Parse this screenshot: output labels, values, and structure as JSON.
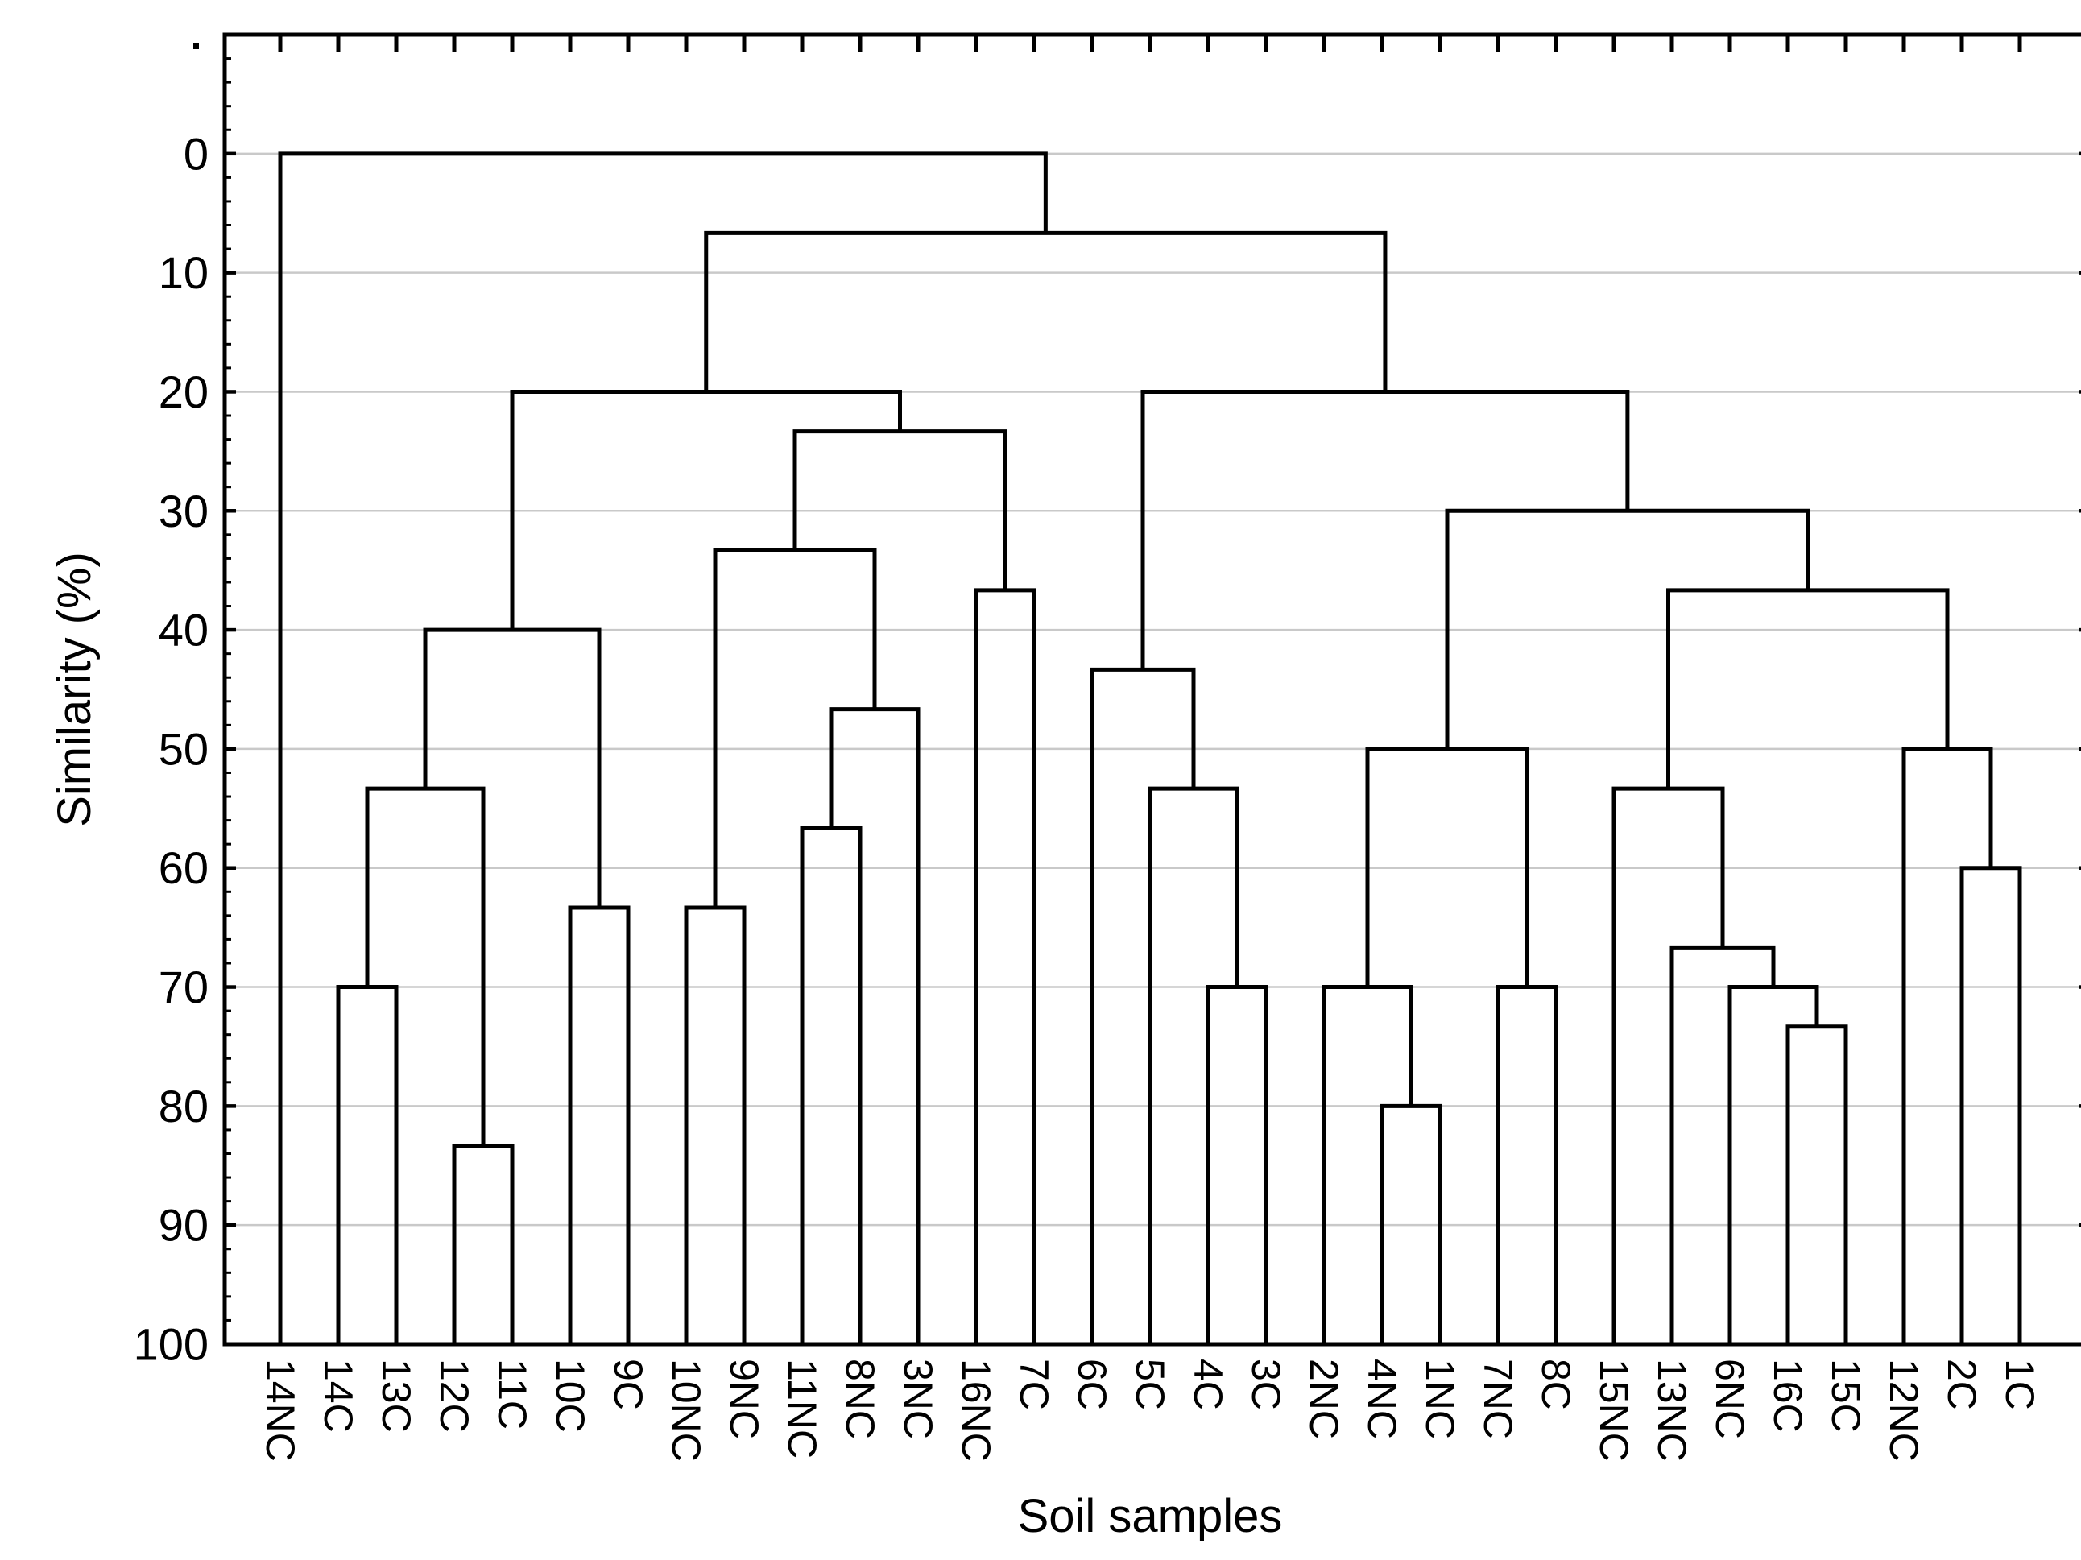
{
  "chart_data": {
    "type": "dendrogram",
    "orientation": "root-top",
    "title": "",
    "xlabel": "Soil samples",
    "ylabel": "Similarity (%)",
    "y_axis": {
      "tick_labels": [
        "0",
        "10",
        "20",
        "30",
        "40",
        "50",
        "60",
        "70",
        "80",
        "90",
        "100"
      ],
      "tick_values": [
        0,
        10,
        20,
        30,
        40,
        50,
        60,
        70,
        80,
        90,
        100
      ],
      "minor_tick_step": 2,
      "ylim_display": [
        -10,
        100
      ],
      "grid": true
    },
    "leaves": [
      "14NC",
      "14C",
      "13C",
      "12C",
      "11C",
      "10C",
      "9C",
      "10NC",
      "9NC",
      "11NC",
      "8NC",
      "3NC",
      "16NC",
      "7C",
      "6C",
      "5C",
      "4C",
      "3C",
      "2NC",
      "4NC",
      "1NC",
      "7NC",
      "8C",
      "15NC",
      "13NC",
      "6NC",
      "16C",
      "15C",
      "12NC",
      "2C",
      "1C"
    ],
    "tree": {
      "h": 0,
      "c": [
        {
          "leaf": "14NC"
        },
        {
          "h": 6.67,
          "c": [
            {
              "h": 20,
              "c": [
                {
                  "h": 40,
                  "c": [
                    {
                      "h": 53.33,
                      "c": [
                        {
                          "h": 70,
                          "c": [
                            {
                              "leaf": "14C"
                            },
                            {
                              "leaf": "13C"
                            }
                          ]
                        },
                        {
                          "h": 83.33,
                          "c": [
                            {
                              "leaf": "12C"
                            },
                            {
                              "leaf": "11C"
                            }
                          ]
                        }
                      ]
                    },
                    {
                      "h": 63.33,
                      "c": [
                        {
                          "leaf": "10C"
                        },
                        {
                          "leaf": "9C"
                        }
                      ]
                    }
                  ]
                },
                {
                  "h": 23.33,
                  "c": [
                    {
                      "h": 33.33,
                      "c": [
                        {
                          "h": 63.33,
                          "c": [
                            {
                              "leaf": "10NC"
                            },
                            {
                              "leaf": "9NC"
                            }
                          ]
                        },
                        {
                          "h": 46.67,
                          "c": [
                            {
                              "h": 56.67,
                              "c": [
                                {
                                  "leaf": "11NC"
                                },
                                {
                                  "leaf": "8NC"
                                }
                              ]
                            },
                            {
                              "leaf": "3NC"
                            }
                          ]
                        }
                      ]
                    },
                    {
                      "h": 36.67,
                      "c": [
                        {
                          "leaf": "16NC"
                        },
                        {
                          "leaf": "7C"
                        }
                      ]
                    }
                  ]
                }
              ]
            },
            {
              "h": 20,
              "c": [
                {
                  "h": 43.33,
                  "c": [
                    {
                      "leaf": "6C"
                    },
                    {
                      "h": 53.33,
                      "c": [
                        {
                          "leaf": "5C"
                        },
                        {
                          "h": 70,
                          "c": [
                            {
                              "leaf": "4C"
                            },
                            {
                              "leaf": "3C"
                            }
                          ]
                        }
                      ]
                    }
                  ]
                },
                {
                  "h": 30,
                  "c": [
                    {
                      "h": 50,
                      "c": [
                        {
                          "h": 70,
                          "c": [
                            {
                              "leaf": "2NC"
                            },
                            {
                              "h": 80,
                              "c": [
                                {
                                  "leaf": "4NC"
                                },
                                {
                                  "leaf": "1NC"
                                }
                              ]
                            }
                          ]
                        },
                        {
                          "h": 70,
                          "c": [
                            {
                              "leaf": "7NC"
                            },
                            {
                              "leaf": "8C"
                            }
                          ]
                        }
                      ]
                    },
                    {
                      "h": 36.67,
                      "c": [
                        {
                          "h": 53.33,
                          "c": [
                            {
                              "leaf": "15NC"
                            },
                            {
                              "h": 66.67,
                              "c": [
                                {
                                  "leaf": "13NC"
                                },
                                {
                                  "h": 70,
                                  "c": [
                                    {
                                      "leaf": "6NC"
                                    },
                                    {
                                      "h": 73.33,
                                      "c": [
                                        {
                                          "leaf": "16C"
                                        },
                                        {
                                          "leaf": "15C"
                                        }
                                      ]
                                    }
                                  ]
                                }
                              ]
                            }
                          ]
                        },
                        {
                          "h": 50,
                          "c": [
                            {
                              "leaf": "12NC"
                            },
                            {
                              "h": 60,
                              "c": [
                                {
                                  "leaf": "2C"
                                },
                                {
                                  "leaf": "1C"
                                }
                              ]
                            }
                          ]
                        }
                      ]
                    }
                  ]
                }
              ]
            }
          ]
        }
      ]
    },
    "colors": {
      "line": "#000000",
      "grid": "#c9c9c9",
      "background": "#ffffff"
    }
  }
}
